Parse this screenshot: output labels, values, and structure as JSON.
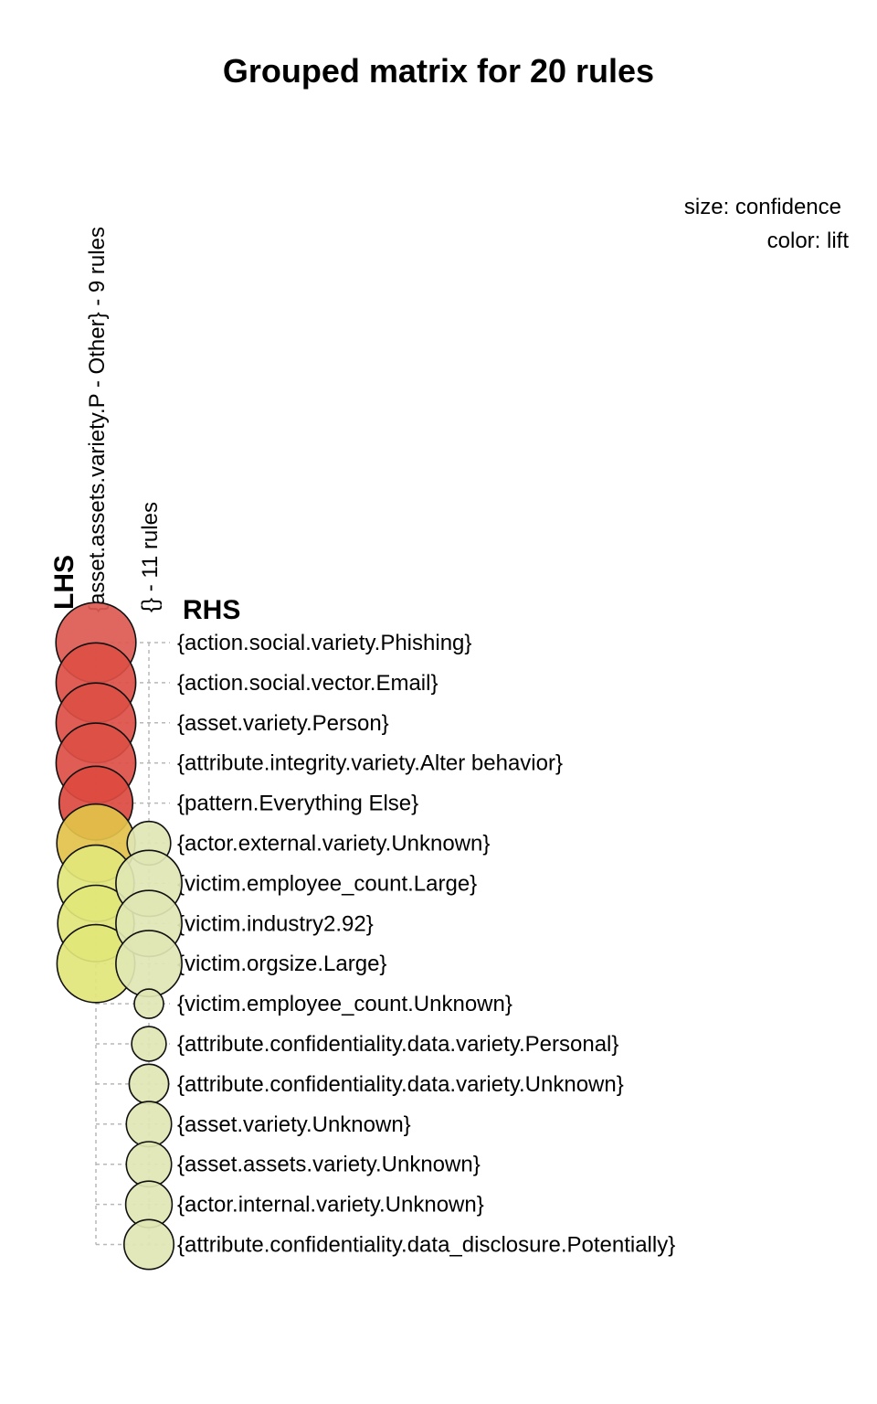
{
  "chart_data": {
    "type": "scatter",
    "title": "Grouped matrix for 20 rules",
    "legend": {
      "size_label": "size: confidence",
      "color_label": "color: lift",
      "placement": "top-right"
    },
    "lhs_title": "LHS",
    "rhs_title": "RHS",
    "lhs_groups": [
      "{asset.assets.variety.P - Other} - 9 rules",
      "{} - 11 rules"
    ],
    "rhs_items": [
      "{action.social.variety.Phishing}",
      "{action.social.vector.Email}",
      "{asset.variety.Person}",
      "{attribute.integrity.variety.Alter behavior}",
      "{pattern.Everything Else}",
      "{actor.external.variety.Unknown}",
      "{victim.employee_count.Large}",
      "{victim.industry2.92}",
      "{victim.orgsize.Large}",
      "{victim.employee_count.Unknown}",
      "{attribute.confidentiality.data.variety.Personal}",
      "{attribute.confidentiality.data.variety.Unknown}",
      "{asset.variety.Unknown}",
      "{asset.assets.variety.Unknown}",
      "{actor.internal.variety.Unknown}",
      "{attribute.confidentiality.data_disclosure.Potentially}"
    ],
    "points": [
      {
        "group": 0,
        "item": 0,
        "confidence": 0.99,
        "color": "#dc5a52"
      },
      {
        "group": 0,
        "item": 1,
        "confidence": 0.98,
        "color": "#dc4f45"
      },
      {
        "group": 0,
        "item": 2,
        "confidence": 0.98,
        "color": "#dc4f45"
      },
      {
        "group": 0,
        "item": 3,
        "confidence": 0.98,
        "color": "#dc4f45"
      },
      {
        "group": 0,
        "item": 4,
        "confidence": 0.8,
        "color": "#dc4a40"
      },
      {
        "group": 0,
        "item": 5,
        "confidence": 0.93,
        "color": "#e2c24a"
      },
      {
        "group": 0,
        "item": 6,
        "confidence": 0.88,
        "color": "#e2e67a"
      },
      {
        "group": 0,
        "item": 7,
        "confidence": 0.88,
        "color": "#e2e67a"
      },
      {
        "group": 0,
        "item": 8,
        "confidence": 0.92,
        "color": "#e2e67a"
      },
      {
        "group": 1,
        "item": 5,
        "confidence": 0.18,
        "color": "#dfe6b3"
      },
      {
        "group": 1,
        "item": 6,
        "confidence": 0.6,
        "color": "#dfe6b3"
      },
      {
        "group": 1,
        "item": 7,
        "confidence": 0.6,
        "color": "#dfe6b3"
      },
      {
        "group": 1,
        "item": 8,
        "confidence": 0.6,
        "color": "#dfe6b3"
      },
      {
        "group": 1,
        "item": 9,
        "confidence": 0.04,
        "color": "#dfe6b3"
      },
      {
        "group": 1,
        "item": 10,
        "confidence": 0.08,
        "color": "#dfe6b3"
      },
      {
        "group": 1,
        "item": 11,
        "confidence": 0.13,
        "color": "#dfe6b3"
      },
      {
        "group": 1,
        "item": 12,
        "confidence": 0.2,
        "color": "#dfe6b3"
      },
      {
        "group": 1,
        "item": 13,
        "confidence": 0.2,
        "color": "#dfe6b3"
      },
      {
        "group": 1,
        "item": 14,
        "confidence": 0.22,
        "color": "#dfe6b3"
      },
      {
        "group": 1,
        "item": 15,
        "confidence": 0.27,
        "color": "#dfe6b3"
      }
    ]
  }
}
